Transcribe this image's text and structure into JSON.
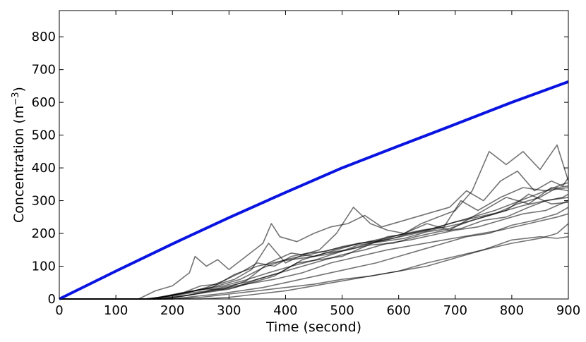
{
  "chart_data": {
    "type": "line",
    "xlabel": "Time (second)",
    "ylabel_text": "Concentration (m",
    "ylabel_sup": "−3",
    "ylabel_close": ")",
    "xlim": [
      0,
      900
    ],
    "ylim": [
      0,
      880
    ],
    "x_ticks": [
      0,
      100,
      200,
      300,
      400,
      500,
      600,
      700,
      800,
      900
    ],
    "y_ticks": [
      0,
      100,
      200,
      300,
      400,
      500,
      600,
      700,
      800
    ],
    "grid": false,
    "legend": "none",
    "colors": {
      "mean": "#0a14e0",
      "samples": "#000000"
    },
    "series": [
      {
        "x": [
          0,
          100,
          200,
          300,
          400,
          500,
          600,
          700,
          800,
          900
        ],
        "y": [
          0,
          85,
          168,
          248,
          325,
          400,
          467,
          533,
          600,
          663
        ]
      },
      {
        "x": [
          0,
          150,
          180,
          210,
          240,
          260,
          290,
          320,
          350,
          380,
          410,
          440,
          470,
          500,
          530,
          560,
          590,
          620,
          650,
          680,
          710,
          740,
          770,
          800,
          830,
          860,
          890,
          900
        ],
        "y": [
          0,
          0,
          5,
          15,
          25,
          35,
          55,
          80,
          110,
          100,
          130,
          140,
          145,
          160,
          170,
          175,
          185,
          200,
          210,
          225,
          240,
          255,
          270,
          290,
          310,
          330,
          350,
          355
        ]
      },
      {
        "x": [
          0,
          140,
          170,
          200,
          230,
          240,
          260,
          280,
          300,
          330,
          360,
          375,
          390,
          420,
          450,
          480,
          510,
          540,
          570,
          600,
          630,
          660,
          690,
          720,
          750,
          780,
          810,
          840,
          870,
          890,
          900
        ],
        "y": [
          0,
          0,
          25,
          40,
          80,
          130,
          100,
          120,
          90,
          130,
          170,
          230,
          190,
          175,
          200,
          220,
          230,
          255,
          220,
          235,
          250,
          265,
          280,
          330,
          300,
          360,
          390,
          330,
          360,
          345,
          370
        ]
      },
      {
        "x": [
          0,
          160,
          190,
          220,
          250,
          280,
          310,
          340,
          370,
          400,
          430,
          460,
          490,
          520,
          550,
          580,
          610,
          640,
          670,
          700,
          730,
          760,
          790,
          820,
          850,
          880,
          900
        ],
        "y": [
          0,
          0,
          10,
          20,
          40,
          45,
          60,
          90,
          170,
          110,
          135,
          150,
          200,
          280,
          230,
          210,
          200,
          230,
          250,
          270,
          330,
          450,
          410,
          450,
          395,
          470,
          360
        ]
      },
      {
        "x": [
          0,
          160,
          200,
          240,
          280,
          320,
          360,
          400,
          440,
          480,
          520,
          560,
          600,
          640,
          680,
          710,
          740,
          780,
          820,
          860,
          900
        ],
        "y": [
          0,
          0,
          12,
          25,
          40,
          60,
          95,
          120,
          135,
          150,
          165,
          180,
          195,
          210,
          220,
          300,
          270,
          310,
          340,
          330,
          340
        ]
      },
      {
        "x": [
          0,
          170,
          210,
          250,
          290,
          330,
          370,
          410,
          450,
          490,
          530,
          570,
          610,
          650,
          690,
          730,
          760,
          790,
          830,
          870,
          900
        ],
        "y": [
          0,
          0,
          15,
          30,
          30,
          55,
          110,
          140,
          130,
          150,
          170,
          180,
          200,
          230,
          210,
          250,
          280,
          310,
          290,
          340,
          330
        ]
      },
      {
        "x": [
          0,
          150,
          190,
          230,
          270,
          310,
          350,
          390,
          430,
          470,
          510,
          550,
          590,
          630,
          670,
          710,
          750,
          790,
          830,
          860,
          900
        ],
        "y": [
          0,
          0,
          8,
          22,
          35,
          75,
          100,
          115,
          125,
          135,
          150,
          165,
          170,
          190,
          205,
          215,
          240,
          250,
          280,
          300,
          310
        ]
      },
      {
        "x": [
          0,
          180,
          220,
          260,
          300,
          340,
          380,
          420,
          460,
          500,
          540,
          580,
          620,
          660,
          700,
          740,
          780,
          820,
          860,
          890,
          900
        ],
        "y": [
          0,
          0,
          10,
          20,
          30,
          50,
          70,
          110,
          120,
          130,
          160,
          190,
          200,
          215,
          235,
          250,
          265,
          285,
          300,
          310,
          320
        ]
      },
      {
        "x": [
          0,
          170,
          210,
          250,
          290,
          330,
          370,
          410,
          450,
          490,
          530,
          570,
          610,
          650,
          690,
          730,
          770,
          810,
          850,
          880,
          900
        ],
        "y": [
          0,
          0,
          14,
          28,
          40,
          58,
          80,
          100,
          118,
          140,
          165,
          175,
          185,
          205,
          215,
          240,
          260,
          290,
          310,
          340,
          345
        ]
      },
      {
        "x": [
          0,
          190,
          230,
          270,
          310,
          350,
          390,
          430,
          470,
          510,
          550,
          590,
          630,
          670,
          710,
          750,
          790,
          830,
          870,
          900
        ],
        "y": [
          0,
          0,
          12,
          25,
          35,
          60,
          80,
          120,
          140,
          150,
          170,
          185,
          200,
          215,
          230,
          250,
          270,
          320,
          290,
          295
        ]
      },
      {
        "x": [
          0,
          180,
          220,
          260,
          300,
          340,
          380,
          420,
          460,
          500,
          540,
          580,
          620,
          660,
          700,
          740,
          780,
          820,
          860,
          880,
          900
        ],
        "y": [
          0,
          0,
          15,
          25,
          40,
          55,
          75,
          95,
          115,
          135,
          150,
          170,
          180,
          195,
          210,
          220,
          240,
          260,
          270,
          285,
          300
        ]
      },
      {
        "x": [
          0,
          200,
          240,
          280,
          320,
          360,
          400,
          440,
          480,
          520,
          560,
          600,
          640,
          680,
          720,
          760,
          800,
          840,
          880,
          900
        ],
        "y": [
          0,
          0,
          8,
          15,
          25,
          35,
          50,
          65,
          80,
          95,
          110,
          130,
          150,
          170,
          190,
          200,
          225,
          240,
          260,
          280
        ]
      },
      {
        "x": [
          0,
          200,
          250,
          300,
          350,
          400,
          450,
          500,
          550,
          600,
          650,
          700,
          750,
          800,
          850,
          880,
          900
        ],
        "y": [
          0,
          0,
          5,
          15,
          25,
          35,
          45,
          60,
          70,
          85,
          110,
          130,
          150,
          170,
          185,
          200,
          230
        ]
      },
      {
        "x": [
          0,
          180,
          230,
          280,
          330,
          380,
          430,
          480,
          530,
          580,
          630,
          680,
          730,
          780,
          830,
          880,
          900
        ],
        "y": [
          0,
          0,
          12,
          30,
          45,
          60,
          80,
          110,
          130,
          150,
          165,
          180,
          195,
          210,
          230,
          250,
          260
        ]
      },
      {
        "x": [
          0,
          250,
          300,
          350,
          400,
          450,
          500,
          550,
          600,
          650,
          700,
          750,
          800,
          850,
          880,
          900
        ],
        "y": [
          0,
          0,
          5,
          15,
          25,
          40,
          55,
          70,
          85,
          100,
          125,
          150,
          180,
          190,
          185,
          190
        ]
      }
    ]
  }
}
